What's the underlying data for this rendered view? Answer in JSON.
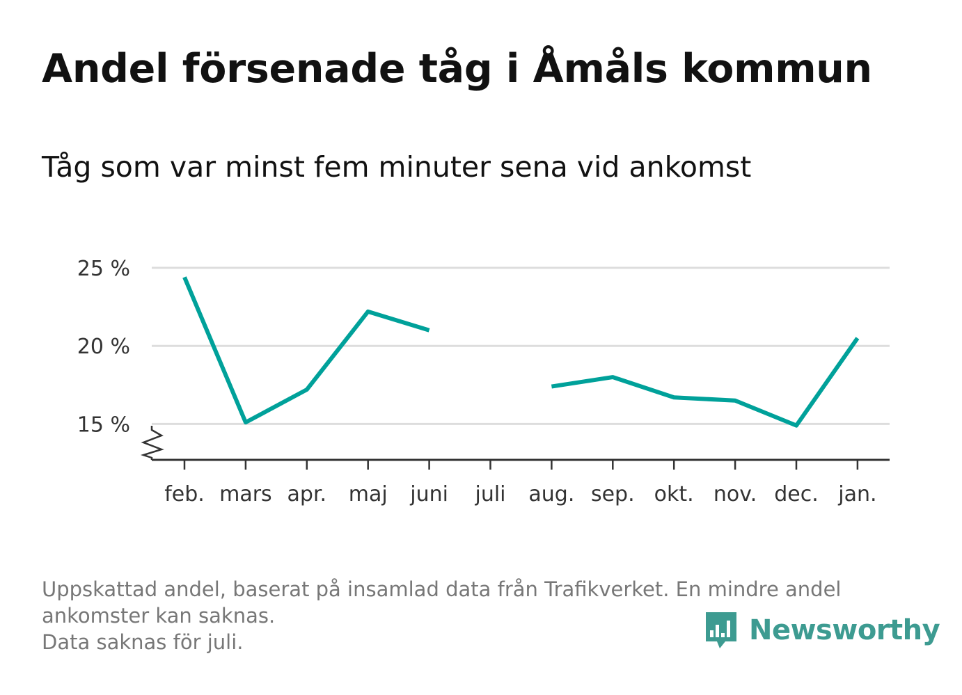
{
  "title": "Andel försenade tåg i Åmåls kommun",
  "subtitle": "Tåg som var minst fem minuter sena vid ankomst",
  "colors": {
    "line": "#00a19a",
    "grid": "#dddddd",
    "axis": "#333333",
    "brand": "#3d9b91"
  },
  "chart_data": {
    "type": "line",
    "categories": [
      "feb.",
      "mars",
      "apr.",
      "maj",
      "juni",
      "juli",
      "aug.",
      "sep.",
      "okt.",
      "nov.",
      "dec.",
      "jan."
    ],
    "series": [
      {
        "values": [
          24.4,
          15.1,
          17.2,
          22.2,
          21.0,
          null,
          17.4,
          18.0,
          16.7,
          16.5,
          14.9,
          20.5
        ]
      }
    ],
    "yticks": [
      15,
      20,
      25
    ],
    "ytick_labels": [
      "15 %",
      "20 %",
      "25 %"
    ],
    "ylim": [
      12.7,
      25
    ],
    "grid": true,
    "axis_break": true
  },
  "footnote": {
    "line1": "Uppskattad andel, baserat på insamlad data från Trafikverket. En mindre andel",
    "line2": "ankomster kan saknas.",
    "line3": "Data saknas för juli."
  },
  "brand": {
    "name": "Newsworthy",
    "icon": "bar-chart-speech-bubble-icon"
  }
}
